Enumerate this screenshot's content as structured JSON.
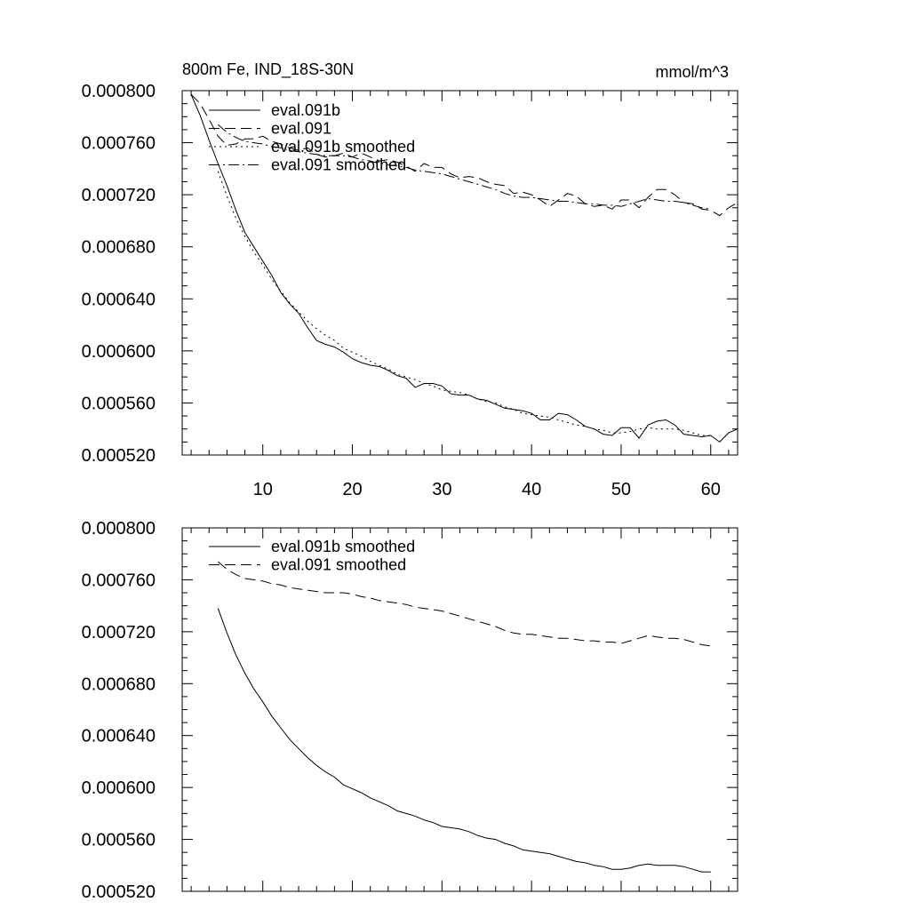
{
  "chart_data": [
    {
      "type": "line",
      "title": "800m Fe, IND_18S-30N",
      "units": "mmol/m^3",
      "xlim": [
        1,
        63
      ],
      "ylim": [
        0.00052,
        0.0008
      ],
      "xticks": [
        10,
        20,
        30,
        40,
        50,
        60
      ],
      "xtick_labels": [
        "10",
        "20",
        "30",
        "40",
        "50",
        "60"
      ],
      "yticks": [
        0.00052,
        0.00056,
        0.0006,
        0.00064,
        0.00068,
        0.00072,
        0.00076,
        0.0008
      ],
      "ytick_labels": [
        "0.000520",
        "0.000560",
        "0.000600",
        "0.000640",
        "0.000680",
        "0.000720",
        "0.000760",
        "0.000800"
      ],
      "legend_position": "top-left",
      "series": [
        {
          "name": "eval.091b",
          "style": "solid",
          "x": [
            2,
            3,
            4,
            5,
            6,
            7,
            8,
            9,
            10,
            11,
            12,
            13,
            14,
            15,
            16,
            17,
            18,
            19,
            20,
            21,
            22,
            23,
            24,
            25,
            26,
            27,
            28,
            29,
            30,
            31,
            32,
            33,
            34,
            35,
            36,
            37,
            38,
            39,
            40,
            41,
            42,
            43,
            44,
            45,
            46,
            47,
            48,
            49,
            50,
            51,
            52,
            53,
            54,
            55,
            56,
            57,
            58,
            59,
            60,
            61,
            62,
            63
          ],
          "y": [
            0.000797,
            0.000781,
            0.000762,
            0.000744,
            0.000727,
            0.000708,
            0.000691,
            0.00068,
            0.000669,
            0.000658,
            0.000645,
            0.000636,
            0.000629,
            0.000618,
            0.000608,
            0.000605,
            0.000603,
            0.000599,
            0.000594,
            0.000591,
            0.000589,
            0.000588,
            0.000585,
            0.000581,
            0.000579,
            0.000572,
            0.000575,
            0.000575,
            0.000573,
            0.000567,
            0.000566,
            0.000566,
            0.000563,
            0.000562,
            0.000559,
            0.000556,
            0.000555,
            0.000554,
            0.000552,
            0.000547,
            0.000547,
            0.000552,
            0.000551,
            0.000547,
            0.000542,
            0.00054,
            0.000536,
            0.000535,
            0.000541,
            0.000541,
            0.000533,
            0.000543,
            0.000546,
            0.000547,
            0.000543,
            0.000536,
            0.000535,
            0.000534,
            0.000535,
            0.00053,
            0.000537,
            0.00054
          ]
        },
        {
          "name": "eval.091",
          "style": "dashed",
          "x": [
            2,
            3,
            4,
            5,
            6,
            7,
            8,
            9,
            10,
            11,
            12,
            13,
            14,
            15,
            16,
            17,
            18,
            19,
            20,
            21,
            22,
            23,
            24,
            25,
            26,
            27,
            28,
            29,
            30,
            31,
            32,
            33,
            34,
            35,
            36,
            37,
            38,
            39,
            40,
            41,
            42,
            43,
            44,
            45,
            46,
            47,
            48,
            49,
            50,
            51,
            52,
            53,
            54,
            55,
            56,
            57,
            58,
            59,
            60,
            61,
            62,
            63
          ],
          "y": [
            0.000797,
            0.00079,
            0.000778,
            0.000765,
            0.000758,
            0.000759,
            0.000763,
            0.000763,
            0.000765,
            0.000761,
            0.000759,
            0.000756,
            0.000754,
            0.000756,
            0.000751,
            0.000749,
            0.00075,
            0.000752,
            0.000749,
            0.000752,
            0.000749,
            0.000746,
            0.000747,
            0.000745,
            0.000742,
            0.000738,
            0.000744,
            0.000741,
            0.000741,
            0.000736,
            0.000733,
            0.000734,
            0.000733,
            0.00073,
            0.000728,
            0.000727,
            0.000721,
            0.000722,
            0.00072,
            0.000716,
            0.000711,
            0.000716,
            0.000721,
            0.000719,
            0.000713,
            0.000711,
            0.000712,
            0.000709,
            0.000716,
            0.000716,
            0.00071,
            0.000718,
            0.000724,
            0.000724,
            0.00072,
            0.000714,
            0.000713,
            0.000709,
            0.000708,
            0.000704,
            0.00071,
            0.000714
          ]
        },
        {
          "name": "eval.091b smoothed",
          "style": "dotted",
          "x": [
            5,
            6,
            7,
            8,
            9,
            10,
            11,
            12,
            13,
            14,
            15,
            16,
            17,
            18,
            19,
            20,
            21,
            22,
            23,
            24,
            25,
            26,
            27,
            28,
            29,
            30,
            31,
            32,
            33,
            34,
            35,
            36,
            37,
            38,
            39,
            40,
            41,
            42,
            43,
            44,
            45,
            46,
            47,
            48,
            49,
            50,
            51,
            52,
            53,
            54,
            55,
            56,
            57,
            58,
            59,
            60
          ],
          "y": [
            0.000738,
            0.000719,
            0.000702,
            0.000688,
            0.000676,
            0.000666,
            0.000655,
            0.000646,
            0.000637,
            0.00063,
            0.000623,
            0.000617,
            0.000612,
            0.000608,
            0.000602,
            0.000599,
            0.000596,
            0.000592,
            0.000589,
            0.000586,
            0.000582,
            0.00058,
            0.000578,
            0.000575,
            0.000573,
            0.00057,
            0.000569,
            0.000568,
            0.000566,
            0.000563,
            0.000561,
            0.00056,
            0.000557,
            0.000555,
            0.000552,
            0.000551,
            0.00055,
            0.000549,
            0.000547,
            0.000545,
            0.000543,
            0.000542,
            0.00054,
            0.000539,
            0.000537,
            0.000537,
            0.000538,
            0.00054,
            0.000541,
            0.00054,
            0.00054,
            0.00054,
            0.000539,
            0.000537,
            0.000535,
            0.000535
          ]
        },
        {
          "name": "eval.091 smoothed",
          "style": "dashdot",
          "x": [
            5,
            6,
            7,
            8,
            9,
            10,
            11,
            12,
            13,
            14,
            15,
            16,
            17,
            18,
            19,
            20,
            21,
            22,
            23,
            24,
            25,
            26,
            27,
            28,
            29,
            30,
            31,
            32,
            33,
            34,
            35,
            36,
            37,
            38,
            39,
            40,
            41,
            42,
            43,
            44,
            45,
            46,
            47,
            48,
            49,
            50,
            51,
            52,
            53,
            54,
            55,
            56,
            57,
            58,
            59,
            60
          ],
          "y": [
            0.000774,
            0.000768,
            0.000764,
            0.000761,
            0.00076,
            0.000759,
            0.000757,
            0.000756,
            0.000754,
            0.000753,
            0.000752,
            0.000751,
            0.00075,
            0.00075,
            0.00075,
            0.000749,
            0.000747,
            0.000746,
            0.000744,
            0.000743,
            0.000742,
            0.000741,
            0.000739,
            0.000738,
            0.000737,
            0.000736,
            0.000734,
            0.000732,
            0.00073,
            0.000728,
            0.000726,
            0.000724,
            0.000721,
            0.000719,
            0.000718,
            0.000718,
            0.000717,
            0.000716,
            0.000715,
            0.000715,
            0.000714,
            0.000713,
            0.000713,
            0.000712,
            0.000712,
            0.000711,
            0.000713,
            0.000715,
            0.000717,
            0.000716,
            0.000715,
            0.000715,
            0.000714,
            0.000712,
            0.00071,
            0.000709
          ]
        }
      ]
    },
    {
      "type": "line",
      "xlim": [
        1,
        63
      ],
      "ylim": [
        0.00052,
        0.0008
      ],
      "yticks": [
        0.00052,
        0.00056,
        0.0006,
        0.00064,
        0.00068,
        0.00072,
        0.00076,
        0.0008
      ],
      "ytick_labels": [
        "0.000520",
        "0.000560",
        "0.000600",
        "0.000640",
        "0.000680",
        "0.000720",
        "0.000760",
        "0.000800"
      ],
      "legend_position": "top-left",
      "series": [
        {
          "name": "eval.091b smoothed",
          "style": "solid",
          "x": [
            5,
            6,
            7,
            8,
            9,
            10,
            11,
            12,
            13,
            14,
            15,
            16,
            17,
            18,
            19,
            20,
            21,
            22,
            23,
            24,
            25,
            26,
            27,
            28,
            29,
            30,
            31,
            32,
            33,
            34,
            35,
            36,
            37,
            38,
            39,
            40,
            41,
            42,
            43,
            44,
            45,
            46,
            47,
            48,
            49,
            50,
            51,
            52,
            53,
            54,
            55,
            56,
            57,
            58,
            59,
            60
          ],
          "y": [
            0.000738,
            0.000719,
            0.000702,
            0.000688,
            0.000676,
            0.000666,
            0.000655,
            0.000646,
            0.000637,
            0.00063,
            0.000623,
            0.000617,
            0.000612,
            0.000608,
            0.000602,
            0.000599,
            0.000596,
            0.000592,
            0.000589,
            0.000586,
            0.000582,
            0.00058,
            0.000578,
            0.000575,
            0.000573,
            0.00057,
            0.000569,
            0.000568,
            0.000566,
            0.000563,
            0.000561,
            0.00056,
            0.000557,
            0.000555,
            0.000552,
            0.000551,
            0.00055,
            0.000549,
            0.000547,
            0.000545,
            0.000543,
            0.000542,
            0.00054,
            0.000539,
            0.000537,
            0.000537,
            0.000538,
            0.00054,
            0.000541,
            0.00054,
            0.00054,
            0.00054,
            0.000539,
            0.000537,
            0.000535,
            0.000535
          ]
        },
        {
          "name": "eval.091 smoothed",
          "style": "dashed",
          "x": [
            5,
            6,
            7,
            8,
            9,
            10,
            11,
            12,
            13,
            14,
            15,
            16,
            17,
            18,
            19,
            20,
            21,
            22,
            23,
            24,
            25,
            26,
            27,
            28,
            29,
            30,
            31,
            32,
            33,
            34,
            35,
            36,
            37,
            38,
            39,
            40,
            41,
            42,
            43,
            44,
            45,
            46,
            47,
            48,
            49,
            50,
            51,
            52,
            53,
            54,
            55,
            56,
            57,
            58,
            59,
            60
          ],
          "y": [
            0.000774,
            0.000768,
            0.000764,
            0.000761,
            0.00076,
            0.000759,
            0.000757,
            0.000756,
            0.000754,
            0.000753,
            0.000752,
            0.000751,
            0.00075,
            0.00075,
            0.00075,
            0.000749,
            0.000747,
            0.000746,
            0.000744,
            0.000743,
            0.000742,
            0.000741,
            0.000739,
            0.000738,
            0.000737,
            0.000736,
            0.000734,
            0.000732,
            0.00073,
            0.000728,
            0.000726,
            0.000724,
            0.000721,
            0.000719,
            0.000718,
            0.000718,
            0.000717,
            0.000716,
            0.000715,
            0.000715,
            0.000714,
            0.000713,
            0.000713,
            0.000712,
            0.000712,
            0.000711,
            0.000713,
            0.000715,
            0.000717,
            0.000716,
            0.000715,
            0.000715,
            0.000714,
            0.000712,
            0.00071,
            0.000709
          ]
        }
      ]
    }
  ]
}
